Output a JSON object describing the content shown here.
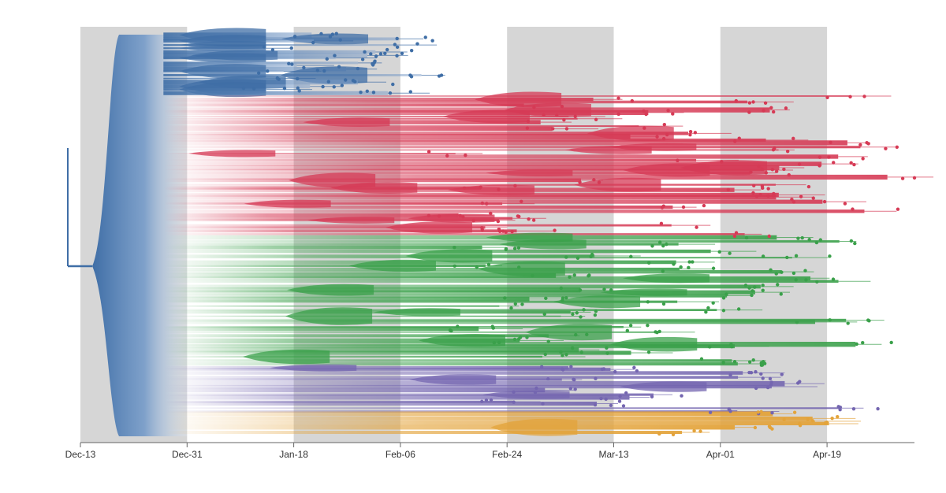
{
  "header": {
    "title_fragment": ""
  },
  "chart_data": {
    "type": "phylogenetic-tree",
    "x_axis": {
      "type": "date",
      "tick_labels": [
        "Dec-13",
        "Dec-31",
        "Jan-18",
        "Feb-06",
        "Feb-24",
        "Mar-13",
        "Apr-01",
        "Apr-19"
      ],
      "range": [
        "Dec-13",
        "May-01"
      ],
      "shaded_bands": [
        [
          "Dec-13",
          "Dec-31"
        ],
        [
          "Jan-18",
          "Feb-06"
        ],
        [
          "Feb-24",
          "Mar-13"
        ],
        [
          "Apr-01",
          "Apr-19"
        ]
      ]
    },
    "root_date": "Dec-15",
    "legend": "none",
    "grid": false,
    "clade_colors": {
      "ancestral": "#3f6ea6",
      "red": "#d63a55",
      "green": "#3aa04a",
      "purple": "#7466b0",
      "orange": "#e3a33a"
    },
    "clades": [
      {
        "color": "ancestral",
        "tips": 18,
        "first_tip": "Dec-29",
        "last_tip": "Feb-10"
      },
      {
        "color": "red",
        "tips": 42,
        "first_tip": "Jan-05",
        "last_tip": "Apr-30"
      },
      {
        "color": "green",
        "tips": 38,
        "first_tip": "Jan-10",
        "last_tip": "Apr-26"
      },
      {
        "color": "purple",
        "tips": 14,
        "first_tip": "Jan-20",
        "last_tip": "Apr-24"
      },
      {
        "color": "orange",
        "tips": 6,
        "first_tip": "Mar-05",
        "last_tip": "Apr-22"
      }
    ]
  }
}
